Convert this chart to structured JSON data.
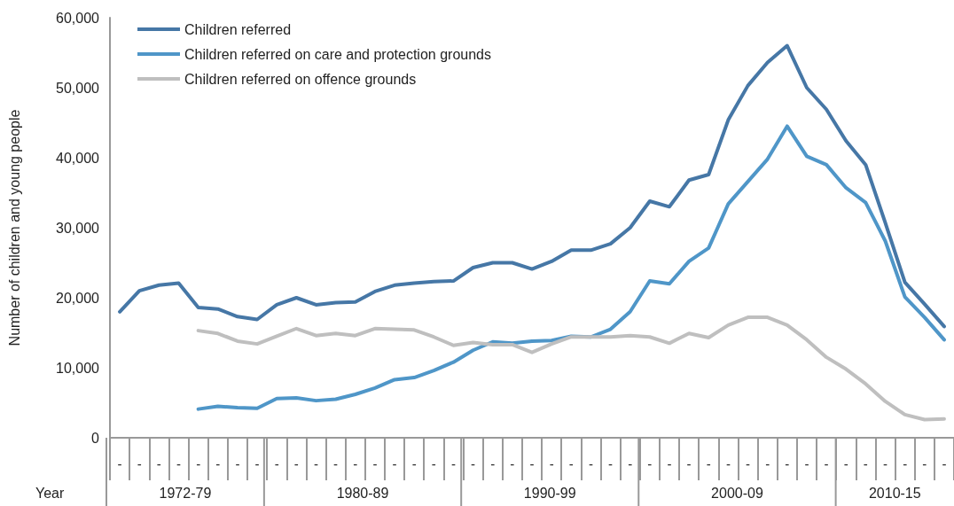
{
  "chart_data": {
    "type": "line",
    "xlabel": "Year",
    "ylabel": "Number of children and young people",
    "categories": [
      "-",
      "-",
      "-",
      "-",
      "-",
      "-",
      "-",
      "-",
      "-",
      "-",
      "-",
      "-",
      "-",
      "-",
      "-",
      "-",
      "-",
      "-",
      "-",
      "-",
      "-",
      "-",
      "-",
      "-",
      "-",
      "-",
      "-",
      "-",
      "-",
      "-",
      "-",
      "-",
      "-",
      "-",
      "-",
      "-",
      "-",
      "-",
      "-",
      "-",
      "-",
      "-",
      "-"
    ],
    "series": [
      {
        "name": "Children referred",
        "color": "#4677a6",
        "values": [
          18000,
          21000,
          21800,
          22100,
          18600,
          18400,
          17300,
          16900,
          19000,
          20000,
          19000,
          19300,
          19400,
          20900,
          21800,
          22100,
          22300,
          22400,
          24300,
          25000,
          25000,
          24100,
          25200,
          26800,
          26800,
          27700,
          30000,
          33800,
          33000,
          36800,
          37600,
          45400,
          50300,
          53600,
          56000,
          50000,
          46900,
          42400,
          39000,
          30700,
          22200,
          19100,
          15900
        ]
      },
      {
        "name": "Children referred on care and protection grounds",
        "color": "#4f96c8",
        "values": [
          null,
          null,
          null,
          null,
          4100,
          4500,
          4300,
          4200,
          5600,
          5700,
          5300,
          5500,
          6200,
          7100,
          8300,
          8600,
          9600,
          10800,
          12500,
          13700,
          13500,
          13800,
          13900,
          14500,
          14400,
          15500,
          18000,
          22400,
          22000,
          25200,
          27100,
          33400,
          36600,
          39800,
          44500,
          40200,
          39000,
          35700,
          33600,
          28100,
          20100,
          17200,
          14000
        ]
      },
      {
        "name": "Children referred on offence grounds",
        "color": "#bfbfbf",
        "values": [
          null,
          null,
          null,
          null,
          15300,
          14900,
          13800,
          13400,
          14500,
          15600,
          14600,
          14900,
          14600,
          15600,
          15500,
          15400,
          14400,
          13200,
          13600,
          13300,
          13300,
          12200,
          13400,
          14400,
          14400,
          14400,
          14600,
          14400,
          13500,
          14900,
          14300,
          16100,
          17200,
          17200,
          16100,
          14000,
          11500,
          9800,
          7700,
          5200,
          3300,
          2600,
          2700
        ]
      }
    ],
    "ylim": [
      0,
      60000
    ],
    "yticks": [
      0,
      {
        "value": 10000,
        "label": "10,000"
      },
      {
        "value": 20000,
        "label": "20,000"
      },
      {
        "value": 30000,
        "label": "30,000"
      },
      {
        "value": 40000,
        "label": "40,000"
      },
      {
        "value": 50000,
        "label": "50,000"
      },
      {
        "value": 60000,
        "label": "60,000"
      }
    ],
    "grid": false,
    "legend": "top left",
    "marker": "none",
    "line_style": "solid",
    "annotations": [
      "1972-79",
      "1980-89",
      "1990-99",
      "2000-09",
      "2010-15"
    ]
  }
}
